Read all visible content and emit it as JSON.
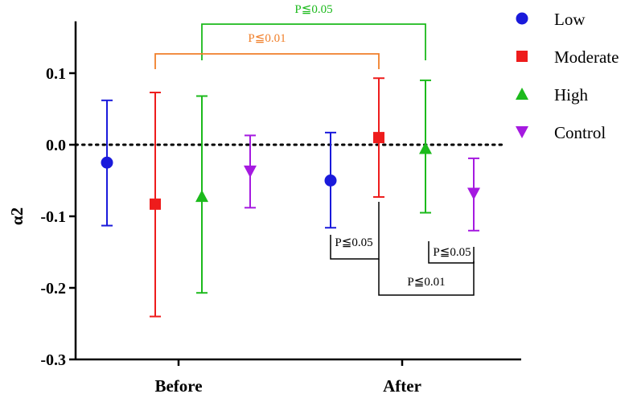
{
  "chart_data": {
    "type": "scatter",
    "title": "",
    "xlabel": "",
    "ylabel": "α2",
    "ylim": [
      -0.3,
      0.15
    ],
    "yticks": [
      0.1,
      0.0,
      -0.1,
      -0.2,
      -0.3
    ],
    "ytick_labels": [
      "0.1",
      "0.0",
      "-0.1",
      "-0.2",
      "-0.3"
    ],
    "categories": [
      "Before",
      "After"
    ],
    "reference_line": {
      "y": 0.0,
      "style": "dotted"
    },
    "legend_position": "right",
    "series": [
      {
        "name": "Low",
        "color": "#1a1adb",
        "marker": "circle",
        "points": [
          {
            "x": "Before",
            "y": -0.025,
            "low": -0.113,
            "high": 0.062
          },
          {
            "x": "After",
            "y": -0.05,
            "low": -0.116,
            "high": 0.017
          }
        ]
      },
      {
        "name": "Moderate",
        "color": "#ee1c1c",
        "marker": "square",
        "points": [
          {
            "x": "Before",
            "y": -0.083,
            "low": -0.24,
            "high": 0.073
          },
          {
            "x": "After",
            "y": 0.01,
            "low": -0.073,
            "high": 0.093
          }
        ]
      },
      {
        "name": "High",
        "color": "#1cba1c",
        "marker": "triangle-up",
        "points": [
          {
            "x": "Before",
            "y": -0.072,
            "low": -0.207,
            "high": 0.068
          },
          {
            "x": "After",
            "y": -0.005,
            "low": -0.095,
            "high": 0.09
          }
        ]
      },
      {
        "name": "Control",
        "color": "#a51ae0",
        "marker": "triangle-down",
        "points": [
          {
            "x": "Before",
            "y": -0.037,
            "low": -0.088,
            "high": 0.013
          },
          {
            "x": "After",
            "y": -0.068,
            "low": -0.12,
            "high": -0.019
          }
        ]
      }
    ],
    "annotations": [
      {
        "text": "P≦0.05",
        "color": "#1cba1c",
        "from": [
          "Before",
          "High"
        ],
        "to": [
          "After",
          "High"
        ],
        "side": "top"
      },
      {
        "text": "P≦0.01",
        "color": "#f07f2a",
        "from": [
          "Before",
          "Moderate"
        ],
        "to": [
          "After",
          "Moderate"
        ],
        "side": "top"
      },
      {
        "text": "P≦0.05",
        "color": "#000000",
        "from": [
          "After",
          "Low"
        ],
        "to": [
          "After",
          "Moderate"
        ],
        "side": "bottom"
      },
      {
        "text": "P≦0.01",
        "color": "#000000",
        "from": [
          "After",
          "Moderate"
        ],
        "to": [
          "After",
          "Control"
        ],
        "side": "bottom"
      },
      {
        "text": "P≦0.05",
        "color": "#000000",
        "from": [
          "After",
          "High"
        ],
        "to": [
          "After",
          "Control"
        ],
        "side": "bottom"
      }
    ]
  }
}
